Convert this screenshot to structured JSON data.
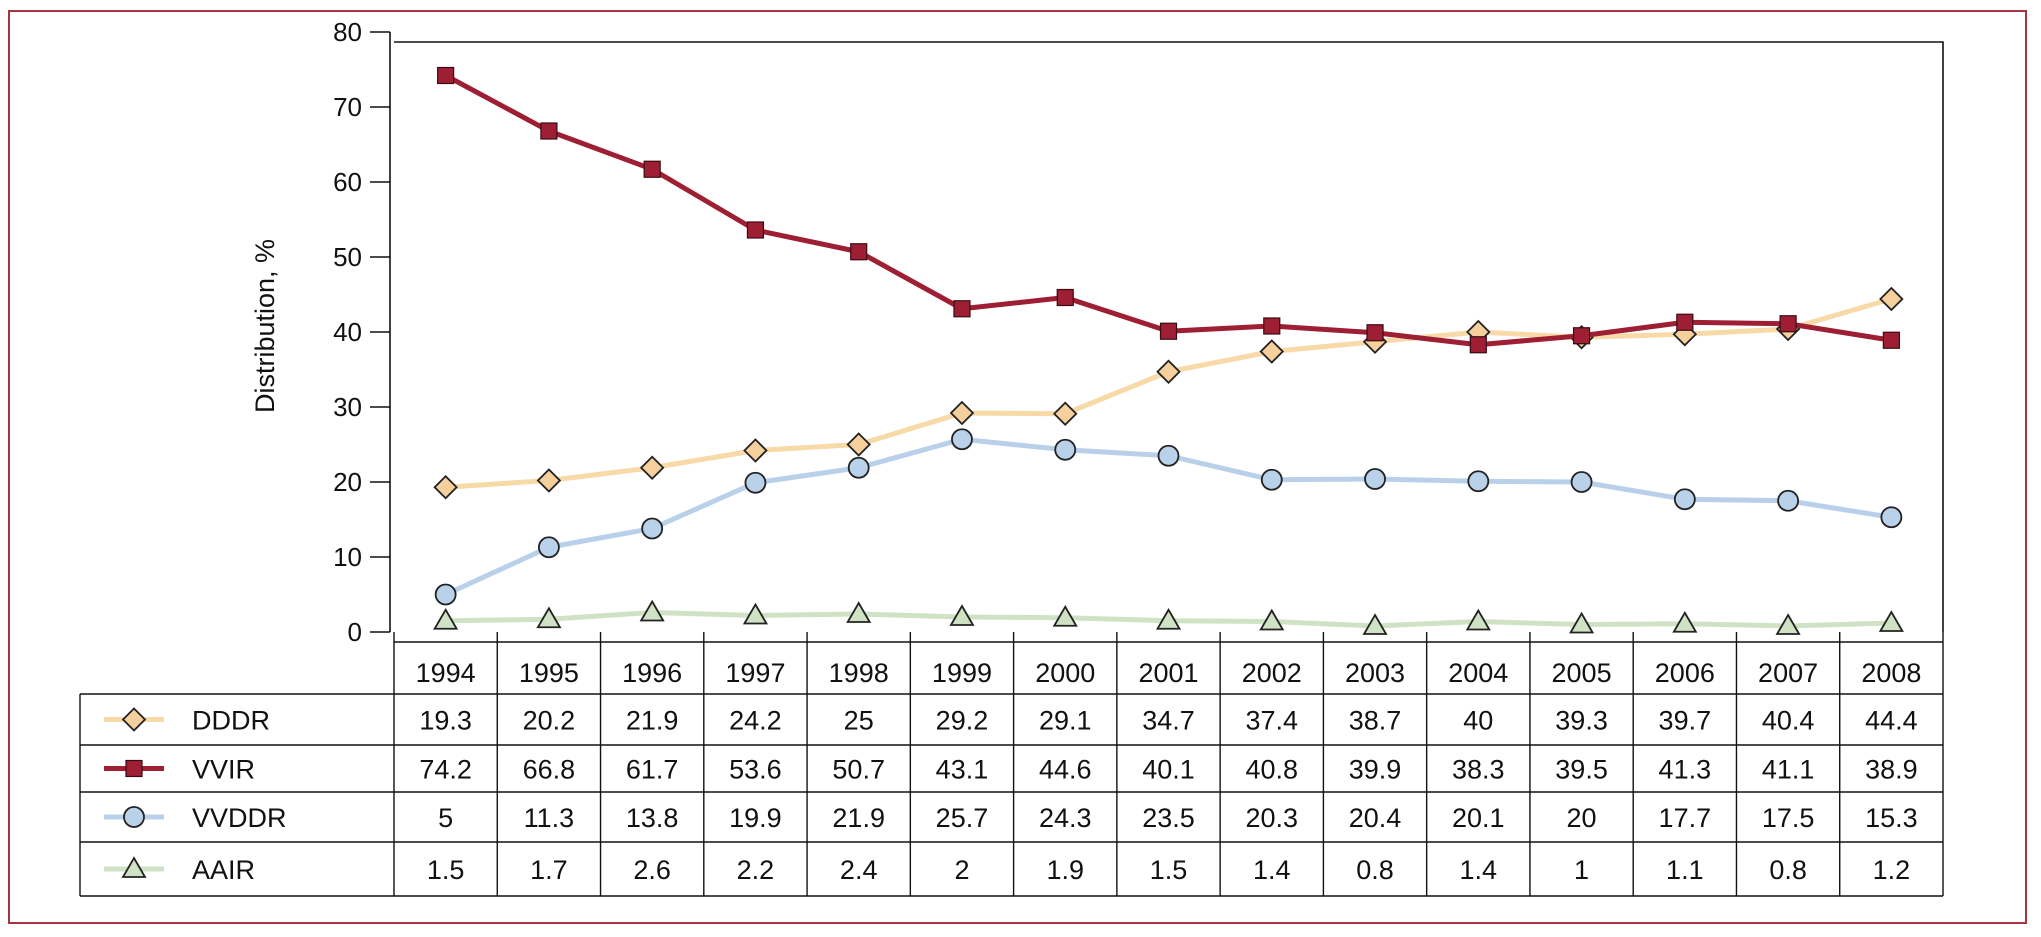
{
  "chart_data": {
    "type": "line",
    "title": "",
    "xlabel": "",
    "ylabel": "Distribution, %",
    "ylim": [
      0,
      80
    ],
    "yticks": [
      0,
      10,
      20,
      30,
      40,
      50,
      60,
      70,
      80
    ],
    "grid": false,
    "legend_placement": "table-below",
    "categories": [
      "1994",
      "1995",
      "1996",
      "1997",
      "1998",
      "1999",
      "2000",
      "2001",
      "2002",
      "2003",
      "2004",
      "2005",
      "2006",
      "2007",
      "2008"
    ],
    "series": [
      {
        "name": "DDDR",
        "marker": "diamond",
        "line_color": "#f8d9a8",
        "marker_fill": "#f6d09c",
        "values": [
          19.3,
          20.2,
          21.9,
          24.2,
          25,
          29.2,
          29.1,
          34.7,
          37.4,
          38.7,
          40,
          39.3,
          39.7,
          40.4,
          44.4
        ],
        "labels": [
          "19.3",
          "20.2",
          "21.9",
          "24.2",
          "25",
          "29.2",
          "29.1",
          "34.7",
          "37.4",
          "38.7",
          "40",
          "39.3",
          "39.7",
          "40.4",
          "44.4"
        ]
      },
      {
        "name": "VVIR",
        "marker": "square",
        "line_color": "#9e1f33",
        "marker_fill": "#9e1f33",
        "values": [
          74.2,
          66.8,
          61.7,
          53.6,
          50.7,
          43.1,
          44.6,
          40.1,
          40.8,
          39.9,
          38.3,
          39.5,
          41.3,
          41.1,
          38.9
        ],
        "labels": [
          "74.2",
          "66.8",
          "61.7",
          "53.6",
          "50.7",
          "43.1",
          "44.6",
          "40.1",
          "40.8",
          "39.9",
          "38.3",
          "39.5",
          "41.3",
          "41.1",
          "38.9"
        ]
      },
      {
        "name": "VVDDR",
        "marker": "circle",
        "line_color": "#b9d0ea",
        "marker_fill": "#bad1ea",
        "values": [
          5,
          11.3,
          13.8,
          19.9,
          21.9,
          25.7,
          24.3,
          23.5,
          20.3,
          20.4,
          20.1,
          20,
          17.7,
          17.5,
          15.3
        ],
        "labels": [
          "5",
          "11.3",
          "13.8",
          "19.9",
          "21.9",
          "25.7",
          "24.3",
          "23.5",
          "20.3",
          "20.4",
          "20.1",
          "20",
          "17.7",
          "17.5",
          "15.3"
        ]
      },
      {
        "name": "AAIR",
        "marker": "triangle",
        "line_color": "#cfe3c4",
        "marker_fill": "#cfe3c4",
        "values": [
          1.5,
          1.7,
          2.6,
          2.2,
          2.4,
          2,
          1.9,
          1.5,
          1.4,
          0.8,
          1.4,
          1,
          1.1,
          0.8,
          1.2
        ],
        "labels": [
          "1.5",
          "1.7",
          "2.6",
          "2.2",
          "2.4",
          "2",
          "1.9",
          "1.5",
          "1.4",
          "0.8",
          "1.4",
          "1",
          "1.1",
          "0.8",
          "1.2"
        ]
      }
    ],
    "colors": {
      "frame": "#a8343f",
      "axis": "#111111"
    }
  }
}
